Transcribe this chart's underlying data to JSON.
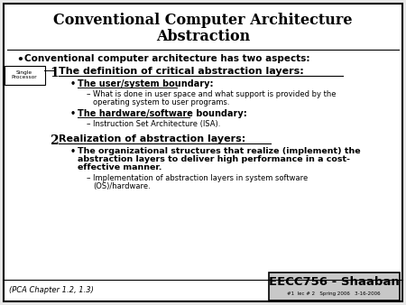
{
  "title_line1": "Conventional Computer Architecture",
  "title_line2": "Abstraction",
  "bg_color": "#e8e8e8",
  "border_color": "#000000",
  "text_color": "#000000",
  "footer_box_color": "#c8c8c8",
  "footer_left": "(PCA Chapter 1.2, 1.3)",
  "footer_box_title": "EECC756 - Shaaban",
  "footer_box_sub": "#1  lec # 2   Spring 2006   3-16-2006",
  "sidebar_text": "Single\nProcessor"
}
